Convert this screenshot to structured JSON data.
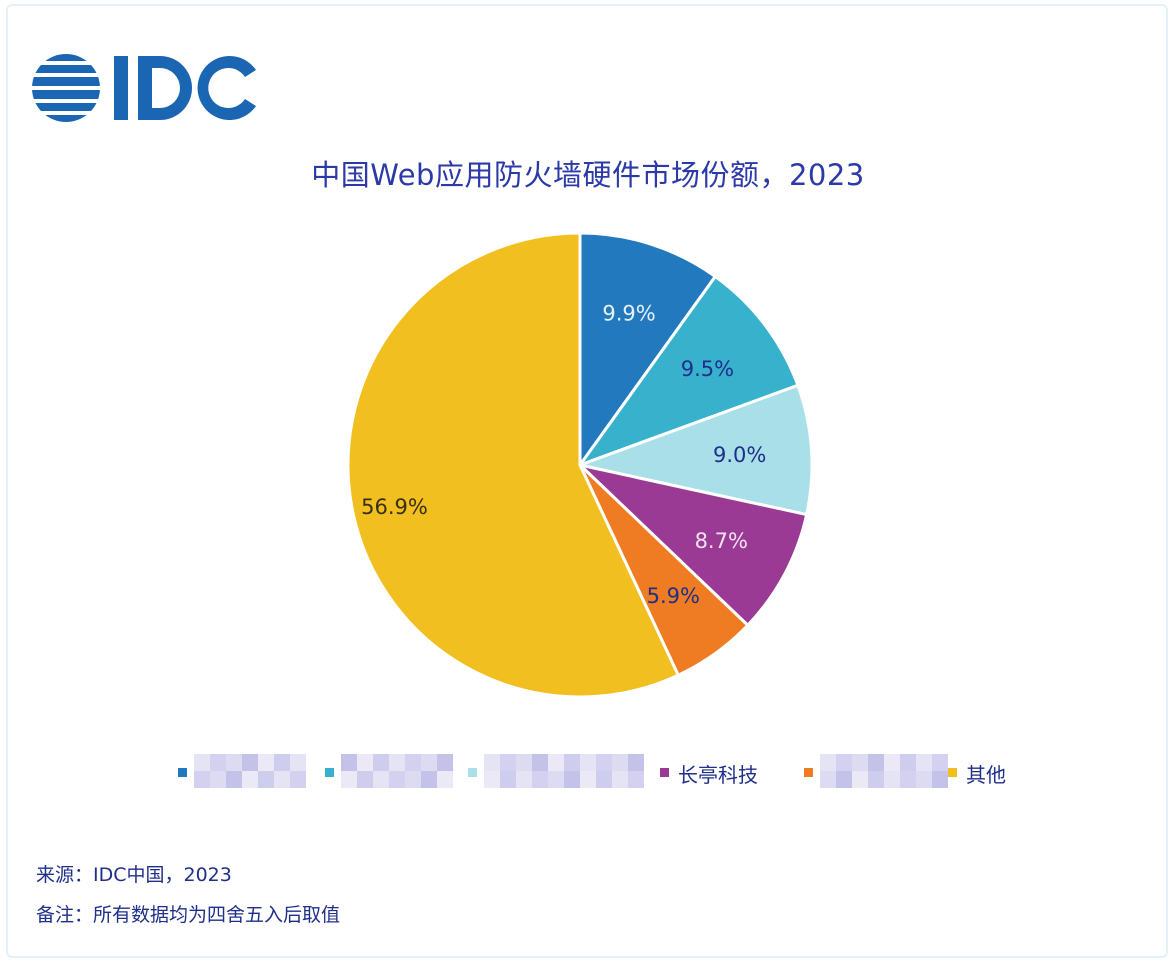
{
  "logo": {
    "text": "IDC"
  },
  "title": "中国Web应用防火墙硬件市场份额，2023",
  "chart_data": {
    "type": "pie",
    "title": "中国Web应用防火墙硬件市场份额，2023",
    "start_angle_deg": 0,
    "direction": "clockwise",
    "slices": [
      {
        "name": "",
        "value": 9.9,
        "label": "9.9%",
        "color": "#2379be",
        "label_color": "#e8f1fb",
        "redacted": true
      },
      {
        "name": "",
        "value": 9.5,
        "label": "9.5%",
        "color": "#38b1cc",
        "label_color": "#1f2f8a",
        "redacted": true
      },
      {
        "name": "",
        "value": 9.0,
        "label": "9.0%",
        "color": "#a9dfe8",
        "label_color": "#1f2f8a",
        "redacted": true
      },
      {
        "name": "长亭科技",
        "value": 8.7,
        "label": "8.7%",
        "color": "#9a3a94",
        "label_color": "#f1e3f1",
        "redacted": false
      },
      {
        "name": "",
        "value": 5.9,
        "label": "5.9%",
        "color": "#ef7b22",
        "label_color": "#1f2f8a",
        "redacted": true
      },
      {
        "name": "其他",
        "value": 56.9,
        "label": "56.9%",
        "color": "#f1bf1f",
        "label_color": "#3a2f10",
        "redacted": false
      }
    ],
    "legend_position": "bottom"
  },
  "footnotes": {
    "source": "来源：IDC中国，2023",
    "note": "备注：所有数据均为四舍五入后取值"
  },
  "colors": {
    "title": "#2b3aa6",
    "logo_blue": "#1b66b3",
    "slice_border": "#ffffff"
  }
}
